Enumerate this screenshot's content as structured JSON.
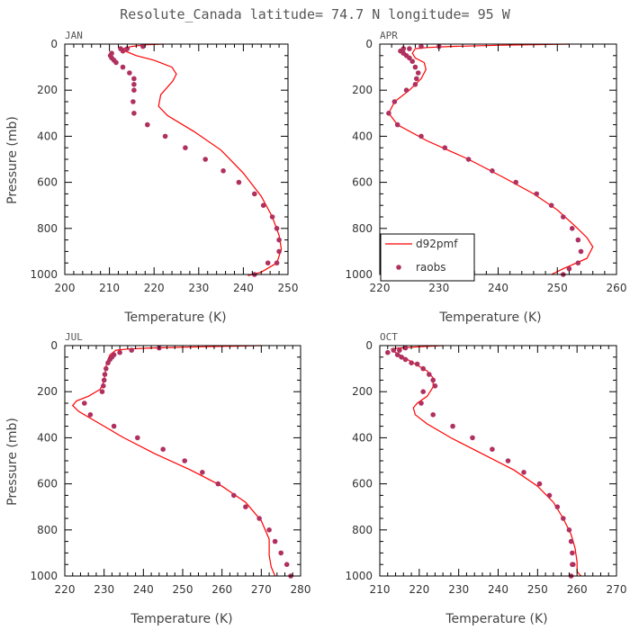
{
  "title": "Resolute_Canada  latitude= 74.7 N longitude= 95 W",
  "colors": {
    "model": "#ff0000",
    "obs": "#b03060",
    "axis": "#000000"
  },
  "chart_data": [
    {
      "type": "line",
      "panel": "JAN",
      "xlabel": "Temperature (K)",
      "ylabel": "Pressure (mb)",
      "xlim": [
        200,
        250
      ],
      "ylim": [
        1000,
        0
      ],
      "xticks": [
        200,
        210,
        220,
        230,
        240,
        250
      ],
      "yticks": [
        0,
        200,
        400,
        600,
        800,
        1000
      ],
      "grid": false,
      "legend": false,
      "series": [
        {
          "name": "d92pmf",
          "kind": "line",
          "x": [
            222,
            218,
            215,
            213,
            213.5,
            216,
            220,
            224,
            225,
            224.2,
            221.5,
            221,
            223,
            229,
            235,
            240,
            244,
            246.5,
            248,
            248.5,
            247.5,
            244,
            241
          ],
          "y": [
            0,
            3,
            10,
            20,
            30,
            50,
            70,
            100,
            130,
            160,
            220,
            270,
            310,
            380,
            460,
            560,
            660,
            750,
            830,
            890,
            950,
            990,
            1005
          ]
        },
        {
          "name": "raobs",
          "kind": "scatter",
          "x": [
            217.5,
            214,
            213,
            212.5,
            210.5,
            210.2,
            210.5,
            211,
            211.5,
            213,
            214.5,
            215.5,
            215.5,
            215.5,
            215.3,
            215.5,
            218.5,
            222.5,
            227,
            231.5,
            235.5,
            239,
            242.5,
            244.5,
            246.5,
            247.5,
            248,
            248,
            247.5,
            245.5,
            242.5
          ],
          "y": [
            10,
            20,
            30,
            20,
            40,
            50,
            60,
            70,
            80,
            100,
            125,
            150,
            175,
            200,
            250,
            300,
            350,
            400,
            450,
            500,
            550,
            600,
            650,
            700,
            750,
            800,
            850,
            900,
            950,
            950,
            1000
          ]
        }
      ]
    },
    {
      "type": "line",
      "panel": "APR",
      "xlabel": "Temperature (K)",
      "ylabel": "",
      "xlim": [
        220,
        260
      ],
      "ylim": [
        1000,
        0
      ],
      "xticks": [
        220,
        230,
        240,
        250,
        260
      ],
      "yticks": [
        0,
        200,
        400,
        600,
        800,
        1000
      ],
      "grid": false,
      "legend": "bottom-left",
      "series": [
        {
          "name": "d92pmf",
          "kind": "line",
          "x": [
            252,
            240,
            232,
            228,
            226,
            225.5,
            226,
            227.5,
            227.8,
            227,
            225,
            222.5,
            221.5,
            223,
            228,
            235,
            241,
            246,
            250,
            253,
            255,
            256,
            255,
            251,
            249
          ],
          "y": [
            0,
            5,
            10,
            15,
            20,
            40,
            60,
            80,
            110,
            150,
            200,
            250,
            300,
            350,
            420,
            500,
            580,
            650,
            720,
            790,
            840,
            880,
            930,
            975,
            1000
          ]
        },
        {
          "name": "raobs",
          "kind": "scatter",
          "x": [
            230,
            227,
            225,
            224,
            223.5,
            224,
            224.5,
            225,
            225.5,
            226,
            226.5,
            226.2,
            226,
            224.5,
            222.5,
            221.5,
            223,
            227,
            231,
            235,
            239,
            243,
            246.5,
            249,
            251,
            252.5,
            253.5,
            254,
            253.5,
            252,
            251
          ],
          "y": [
            10,
            10,
            20,
            20,
            30,
            40,
            50,
            60,
            75,
            100,
            125,
            150,
            175,
            200,
            250,
            300,
            350,
            400,
            450,
            500,
            550,
            600,
            650,
            700,
            750,
            800,
            850,
            900,
            950,
            975,
            1000
          ]
        }
      ]
    },
    {
      "type": "line",
      "panel": "JUL",
      "xlabel": "Temperature (K)",
      "ylabel": "Pressure (mb)",
      "xlim": [
        220,
        280
      ],
      "ylim": [
        1000,
        0
      ],
      "xticks": [
        220,
        230,
        240,
        250,
        260,
        270,
        280
      ],
      "yticks": [
        0,
        200,
        400,
        600,
        800,
        1000
      ],
      "grid": false,
      "legend": false,
      "series": [
        {
          "name": "d92pmf",
          "kind": "line",
          "x": [
            270,
            255,
            242,
            236,
            233,
            231.5,
            231,
            230.5,
            230.2,
            229.8,
            229,
            226,
            223,
            222,
            223.5,
            228,
            235,
            243,
            252,
            260,
            266,
            270,
            272,
            272,
            272.5,
            273.5
          ],
          "y": [
            0,
            5,
            10,
            15,
            20,
            40,
            60,
            90,
            130,
            160,
            190,
            220,
            240,
            260,
            285,
            330,
            400,
            470,
            540,
            610,
            680,
            760,
            840,
            910,
            960,
            1000
          ]
        },
        {
          "name": "raobs",
          "kind": "scatter",
          "x": [
            244,
            237,
            234,
            232.5,
            232,
            231.5,
            231,
            230.5,
            230.2,
            230,
            229.8,
            229.5,
            225,
            226.5,
            232.5,
            238.5,
            245,
            250.5,
            255,
            259,
            263,
            266,
            269.5,
            272,
            273.5,
            275,
            276.5,
            277.5
          ],
          "y": [
            10,
            20,
            30,
            40,
            50,
            60,
            75,
            100,
            125,
            150,
            175,
            200,
            250,
            300,
            350,
            400,
            450,
            500,
            550,
            600,
            650,
            700,
            750,
            800,
            850,
            900,
            950,
            1000
          ]
        }
      ]
    },
    {
      "type": "line",
      "panel": "OCT",
      "xlabel": "Temperature (K)",
      "ylabel": "",
      "xlim": [
        210,
        270
      ],
      "ylim": [
        1000,
        0
      ],
      "xticks": [
        210,
        220,
        230,
        240,
        250,
        260,
        270
      ],
      "yticks": [
        0,
        200,
        400,
        600,
        800,
        1000
      ],
      "grid": false,
      "legend": false,
      "series": [
        {
          "name": "d92pmf",
          "kind": "line",
          "x": [
            226,
            220,
            215,
            213,
            214,
            216,
            219,
            222,
            223.5,
            223.5,
            222,
            219.5,
            218.5,
            219,
            222,
            228,
            236,
            244,
            250,
            254,
            256.5,
            258.5,
            259.5,
            260,
            260,
            261
          ],
          "y": [
            0,
            5,
            10,
            15,
            30,
            50,
            80,
            110,
            140,
            180,
            220,
            250,
            270,
            300,
            340,
            400,
            470,
            540,
            610,
            680,
            750,
            820,
            880,
            940,
            980,
            1000
          ]
        },
        {
          "name": "raobs",
          "kind": "scatter",
          "x": [
            216.5,
            215,
            212,
            213.5,
            214.5,
            215.5,
            216.5,
            218,
            219.5,
            221,
            222.5,
            223.5,
            224,
            221,
            220.5,
            223.5,
            228.5,
            233.5,
            238.5,
            242.5,
            246.5,
            250.5,
            253,
            255,
            256.5,
            258,
            258.5,
            258.8,
            258.8,
            259,
            258.5
          ],
          "y": [
            10,
            20,
            30,
            20,
            40,
            50,
            60,
            75,
            80,
            100,
            125,
            150,
            175,
            200,
            250,
            300,
            350,
            400,
            450,
            500,
            550,
            600,
            650,
            700,
            750,
            800,
            850,
            900,
            950,
            950,
            1000
          ]
        }
      ]
    }
  ],
  "legend_items": [
    "d92pmf",
    "raobs"
  ]
}
